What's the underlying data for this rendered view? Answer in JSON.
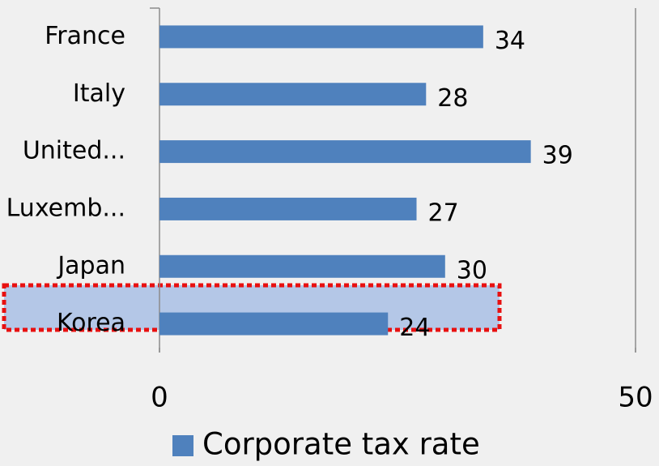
{
  "chart_data": {
    "type": "bar",
    "orientation": "horizontal",
    "categories": [
      "France",
      "Italy",
      "United...",
      "Luxemb...",
      "Japan",
      "Korea"
    ],
    "series": [
      {
        "name": "Corporate tax rate",
        "color": "#4f81bd",
        "values": [
          34,
          28,
          39,
          27,
          30,
          24
        ]
      }
    ],
    "xlim": [
      0,
      50
    ],
    "xticks": [
      0,
      50
    ],
    "grid": false,
    "legend": "bottom"
  }
}
